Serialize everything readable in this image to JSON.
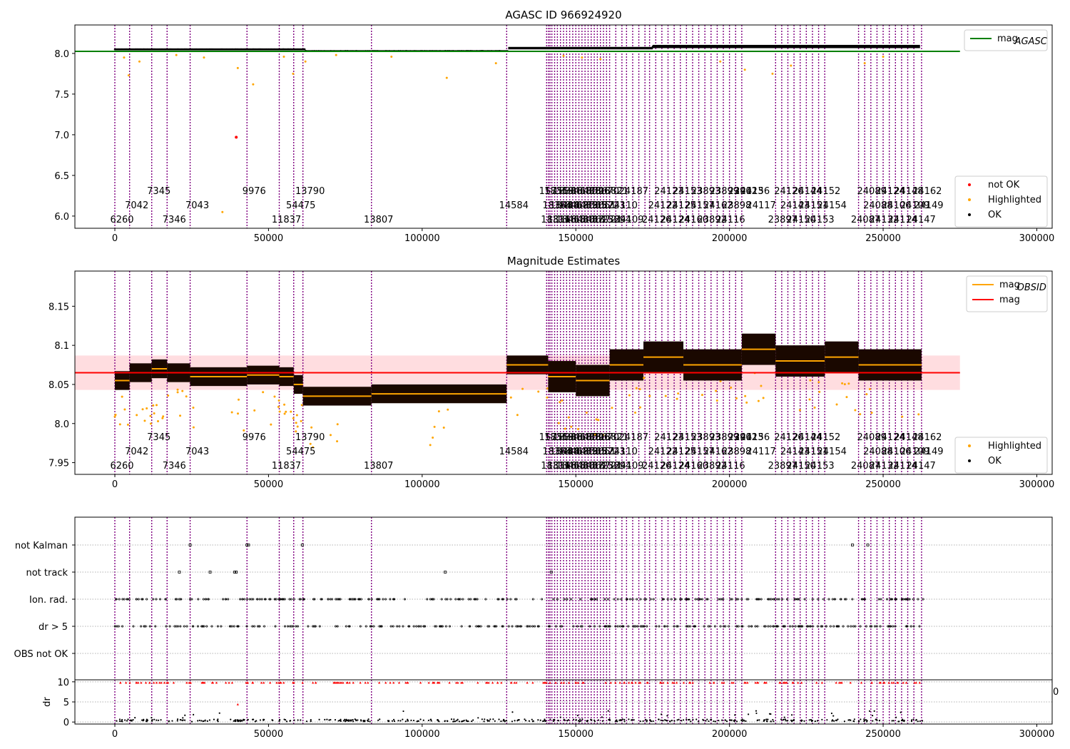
{
  "chart_data": [
    {
      "type": "scatter",
      "title": "AGASC ID 966924920",
      "xlim": [
        -13000,
        305000
      ],
      "ylim": [
        5.85,
        8.35
      ],
      "x_ticks": [
        0,
        50000,
        100000,
        150000,
        200000,
        250000,
        300000
      ],
      "y_ticks": [
        6.0,
        6.5,
        7.0,
        7.5,
        8.0
      ],
      "legend_top": {
        "position": "top-right",
        "entries": [
          {
            "label": "mag",
            "sub": "AGASC",
            "color": "#008000"
          }
        ]
      },
      "legend_bottom": {
        "position": "bottom-right",
        "entries": [
          {
            "label": "not OK",
            "color": "#ff0000"
          },
          {
            "label": "Highlighted",
            "color": "#ffa500"
          },
          {
            "label": "OK",
            "color": "#000000"
          }
        ]
      },
      "mag_agasc": {
        "value": 8.025,
        "x_range": [
          -13000,
          275000
        ],
        "color": "#008000"
      },
      "ok_segments": [
        {
          "x0": 0,
          "x1": 62000,
          "y": 8.05,
          "spread": 0.012
        },
        {
          "x0": 62000,
          "x1": 128000,
          "y": 8.03,
          "spread": 0.01
        },
        {
          "x0": 128000,
          "x1": 175000,
          "y": 8.065,
          "spread": 0.015
        },
        {
          "x0": 175000,
          "x1": 262000,
          "y": 8.085,
          "spread": 0.02
        }
      ],
      "highlighted_points": [
        [
          3000,
          7.95
        ],
        [
          4500,
          7.73
        ],
        [
          8000,
          7.9
        ],
        [
          20000,
          7.98
        ],
        [
          29000,
          7.95
        ],
        [
          35000,
          6.05
        ],
        [
          40000,
          7.82
        ],
        [
          45000,
          7.62
        ],
        [
          55000,
          7.96
        ],
        [
          58000,
          7.75
        ],
        [
          62000,
          7.9
        ],
        [
          72000,
          7.98
        ],
        [
          90000,
          7.96
        ],
        [
          108000,
          7.7
        ],
        [
          124000,
          7.88
        ],
        [
          146000,
          7.97
        ],
        [
          152000,
          7.95
        ],
        [
          158000,
          7.93
        ],
        [
          197000,
          7.9
        ],
        [
          205000,
          7.8
        ],
        [
          214000,
          7.75
        ],
        [
          220000,
          7.85
        ],
        [
          244000,
          7.88
        ],
        [
          250000,
          7.96
        ]
      ],
      "not_ok_points": [
        [
          39500,
          6.97
        ]
      ],
      "obs_labels": [
        {
          "x": 0,
          "row": 0,
          "label": "6260"
        },
        {
          "x": 4800,
          "row": 1,
          "label": "7042"
        },
        {
          "x": 12000,
          "row": 2,
          "label": "7345"
        },
        {
          "x": 17000,
          "row": 0,
          "label": "7346"
        },
        {
          "x": 24500,
          "row": 1,
          "label": "7043"
        },
        {
          "x": 43000,
          "row": 2,
          "label": "9976"
        },
        {
          "x": 53500,
          "row": 0,
          "label": "11837"
        },
        {
          "x": 58200,
          "row": 1,
          "label": "54475"
        },
        {
          "x": 61200,
          "row": 2,
          "label": "13790"
        },
        {
          "x": 83500,
          "row": 0,
          "label": "13807"
        },
        {
          "x": 127500,
          "row": 1,
          "label": "14584"
        },
        {
          "x": 140500,
          "row": 2,
          "label": "15755"
        },
        {
          "x": 141100,
          "row": 0,
          "label": "18311"
        },
        {
          "x": 141600,
          "row": 1,
          "label": "18364"
        },
        {
          "x": 142200,
          "row": 2,
          "label": "18369"
        },
        {
          "x": 143100,
          "row": 0,
          "label": "18366"
        },
        {
          "x": 144000,
          "row": 1,
          "label": "18484"
        },
        {
          "x": 145000,
          "row": 2,
          "label": "18386"
        },
        {
          "x": 146000,
          "row": 0,
          "label": "18465"
        },
        {
          "x": 147000,
          "row": 1,
          "label": "18462"
        },
        {
          "x": 148000,
          "row": 2,
          "label": "18468"
        },
        {
          "x": 149000,
          "row": 0,
          "label": "18480"
        },
        {
          "x": 150000,
          "row": 1,
          "label": "18489"
        },
        {
          "x": 151000,
          "row": 2,
          "label": "18488"
        },
        {
          "x": 152000,
          "row": 0,
          "label": "18487"
        },
        {
          "x": 153000,
          "row": 1,
          "label": "18565"
        },
        {
          "x": 154000,
          "row": 2,
          "label": "18596"
        },
        {
          "x": 155000,
          "row": 0,
          "label": "18615"
        },
        {
          "x": 156000,
          "row": 1,
          "label": "18651"
        },
        {
          "x": 157000,
          "row": 2,
          "label": "18670"
        },
        {
          "x": 158000,
          "row": 0,
          "label": "18721"
        },
        {
          "x": 159000,
          "row": 1,
          "label": "18723"
        },
        {
          "x": 160000,
          "row": 2,
          "label": "18821"
        },
        {
          "x": 161000,
          "row": 0,
          "label": "23894"
        },
        {
          "x": 163000,
          "row": 1,
          "label": "24110"
        },
        {
          "x": 165000,
          "row": 0,
          "label": "24109"
        },
        {
          "x": 166500,
          "row": 2,
          "label": "24187"
        },
        {
          "x": 174000,
          "row": 0,
          "label": "24126"
        },
        {
          "x": 176000,
          "row": 1,
          "label": "24122"
        },
        {
          "x": 178000,
          "row": 2,
          "label": "24123"
        },
        {
          "x": 180000,
          "row": 0,
          "label": "24124"
        },
        {
          "x": 182000,
          "row": 1,
          "label": "24125"
        },
        {
          "x": 184000,
          "row": 2,
          "label": "24153"
        },
        {
          "x": 186000,
          "row": 0,
          "label": "24160"
        },
        {
          "x": 188000,
          "row": 1,
          "label": "24157"
        },
        {
          "x": 190000,
          "row": 2,
          "label": "23893"
        },
        {
          "x": 192000,
          "row": 0,
          "label": "23892"
        },
        {
          "x": 194000,
          "row": 1,
          "label": "24162"
        },
        {
          "x": 196000,
          "row": 2,
          "label": "23899"
        },
        {
          "x": 198000,
          "row": 0,
          "label": "24116"
        },
        {
          "x": 200000,
          "row": 1,
          "label": "23898"
        },
        {
          "x": 202000,
          "row": 2,
          "label": "23902"
        },
        {
          "x": 204000,
          "row": 2,
          "label": "24113"
        },
        {
          "x": 206000,
          "row": 2,
          "label": "24156"
        },
        {
          "x": 208000,
          "row": 1,
          "label": "24117"
        },
        {
          "x": 215000,
          "row": 0,
          "label": "23897"
        },
        {
          "x": 217000,
          "row": 2,
          "label": "24126"
        },
        {
          "x": 219000,
          "row": 1,
          "label": "24143"
        },
        {
          "x": 221000,
          "row": 0,
          "label": "24150"
        },
        {
          "x": 223000,
          "row": 2,
          "label": "24144"
        },
        {
          "x": 225000,
          "row": 1,
          "label": "24151"
        },
        {
          "x": 227000,
          "row": 0,
          "label": "24153"
        },
        {
          "x": 229000,
          "row": 2,
          "label": "24152"
        },
        {
          "x": 231000,
          "row": 1,
          "label": "24154"
        },
        {
          "x": 242000,
          "row": 0,
          "label": "24087"
        },
        {
          "x": 244000,
          "row": 2,
          "label": "24089"
        },
        {
          "x": 246000,
          "row": 1,
          "label": "24088"
        },
        {
          "x": 248000,
          "row": 0,
          "label": "24132"
        },
        {
          "x": 250000,
          "row": 2,
          "label": "24124"
        },
        {
          "x": 252000,
          "row": 1,
          "label": "24106"
        },
        {
          "x": 254000,
          "row": 0,
          "label": "24114"
        },
        {
          "x": 256000,
          "row": 2,
          "label": "24148"
        },
        {
          "x": 258000,
          "row": 1,
          "label": "24109"
        },
        {
          "x": 260000,
          "row": 0,
          "label": "24147"
        },
        {
          "x": 262000,
          "row": 2,
          "label": "24162"
        },
        {
          "x": 262500,
          "row": 1,
          "label": "24149"
        }
      ]
    },
    {
      "type": "scatter",
      "title": "Magnitude Estimates",
      "xlim": [
        -13000,
        305000
      ],
      "ylim": [
        7.935,
        8.195
      ],
      "x_ticks": [
        0,
        50000,
        100000,
        150000,
        200000,
        250000,
        300000
      ],
      "y_ticks": [
        7.95,
        8.0,
        8.05,
        8.1,
        8.15
      ],
      "legend_top": {
        "position": "top-right",
        "entries": [
          {
            "label": "mag",
            "sub": "OBSID",
            "color": "#ffa500"
          },
          {
            "label": "mag",
            "sub": "",
            "color": "#ff0000"
          }
        ]
      },
      "legend_bottom": {
        "position": "bottom-right",
        "entries": [
          {
            "label": "Highlighted",
            "color": "#ffa500"
          },
          {
            "label": "OK",
            "color": "#000000"
          }
        ]
      },
      "mag": {
        "value": 8.065,
        "band": [
          8.043,
          8.087
        ],
        "x_range": [
          -13000,
          275000
        ]
      },
      "obsid_mag": [
        {
          "x0": 0,
          "x1": 4800,
          "y": 8.055
        },
        {
          "x0": 4800,
          "x1": 12000,
          "y": 8.065
        },
        {
          "x0": 12000,
          "x1": 17000,
          "y": 8.07
        },
        {
          "x0": 17000,
          "x1": 24500,
          "y": 8.065
        },
        {
          "x0": 24500,
          "x1": 43000,
          "y": 8.06
        },
        {
          "x0": 43000,
          "x1": 53500,
          "y": 8.062
        },
        {
          "x0": 53500,
          "x1": 58200,
          "y": 8.06
        },
        {
          "x0": 58200,
          "x1": 61200,
          "y": 8.05
        },
        {
          "x0": 61200,
          "x1": 83500,
          "y": 8.035
        },
        {
          "x0": 83500,
          "x1": 127500,
          "y": 8.038
        },
        {
          "x0": 127500,
          "x1": 141000,
          "y": 8.075
        },
        {
          "x0": 141000,
          "x1": 150000,
          "y": 8.06
        },
        {
          "x0": 150000,
          "x1": 161000,
          "y": 8.055
        },
        {
          "x0": 161000,
          "x1": 172000,
          "y": 8.075
        },
        {
          "x0": 172000,
          "x1": 185000,
          "y": 8.085
        },
        {
          "x0": 185000,
          "x1": 204000,
          "y": 8.075
        },
        {
          "x0": 204000,
          "x1": 215000,
          "y": 8.095
        },
        {
          "x0": 215000,
          "x1": 231000,
          "y": 8.08
        },
        {
          "x0": 231000,
          "x1": 242000,
          "y": 8.085
        },
        {
          "x0": 242000,
          "x1": 262500,
          "y": 8.075
        }
      ],
      "ok_spread": 0.012
    },
    {
      "type": "scatter",
      "title": "",
      "xlim": [
        -13000,
        305000
      ],
      "flag_labels": [
        "not Kalman",
        "not track",
        "Ion. rad.",
        "dr > 5",
        "OBS not OK"
      ],
      "dr_ylabel": "dr",
      "dr_ylim": [
        -0.5,
        10.5
      ],
      "dr_ticks": [
        0,
        5,
        10
      ],
      "x_ticks": [
        0,
        50000,
        100000,
        150000,
        200000,
        250000,
        300000
      ],
      "stray_tick": "0"
    }
  ],
  "obsid_boundaries": [
    0,
    4800,
    12000,
    17000,
    24500,
    43000,
    53500,
    58200,
    61200,
    83500,
    127500,
    140500,
    141100,
    141600,
    142200,
    143100,
    144000,
    145000,
    146000,
    147000,
    148000,
    149000,
    150000,
    151000,
    152000,
    153000,
    154000,
    155000,
    156000,
    157000,
    158000,
    159000,
    160000,
    161000,
    163000,
    165000,
    166500,
    168500,
    170500,
    172500,
    174000,
    176000,
    178000,
    180000,
    182000,
    184000,
    186000,
    188000,
    190000,
    192000,
    194000,
    196000,
    198000,
    200000,
    202000,
    204000,
    215000,
    217000,
    219000,
    221000,
    223000,
    225000,
    227000,
    229000,
    231000,
    242000,
    244000,
    246000,
    248000,
    250000,
    252000,
    254000,
    256000,
    258000,
    260000,
    262500
  ],
  "colors": {
    "boundary": "#800080",
    "ok": "#000000",
    "highlighted": "#ffa500",
    "not_ok": "#ff0000",
    "agasc": "#008000",
    "mag": "#ff0000",
    "band": "#ffdde0"
  }
}
